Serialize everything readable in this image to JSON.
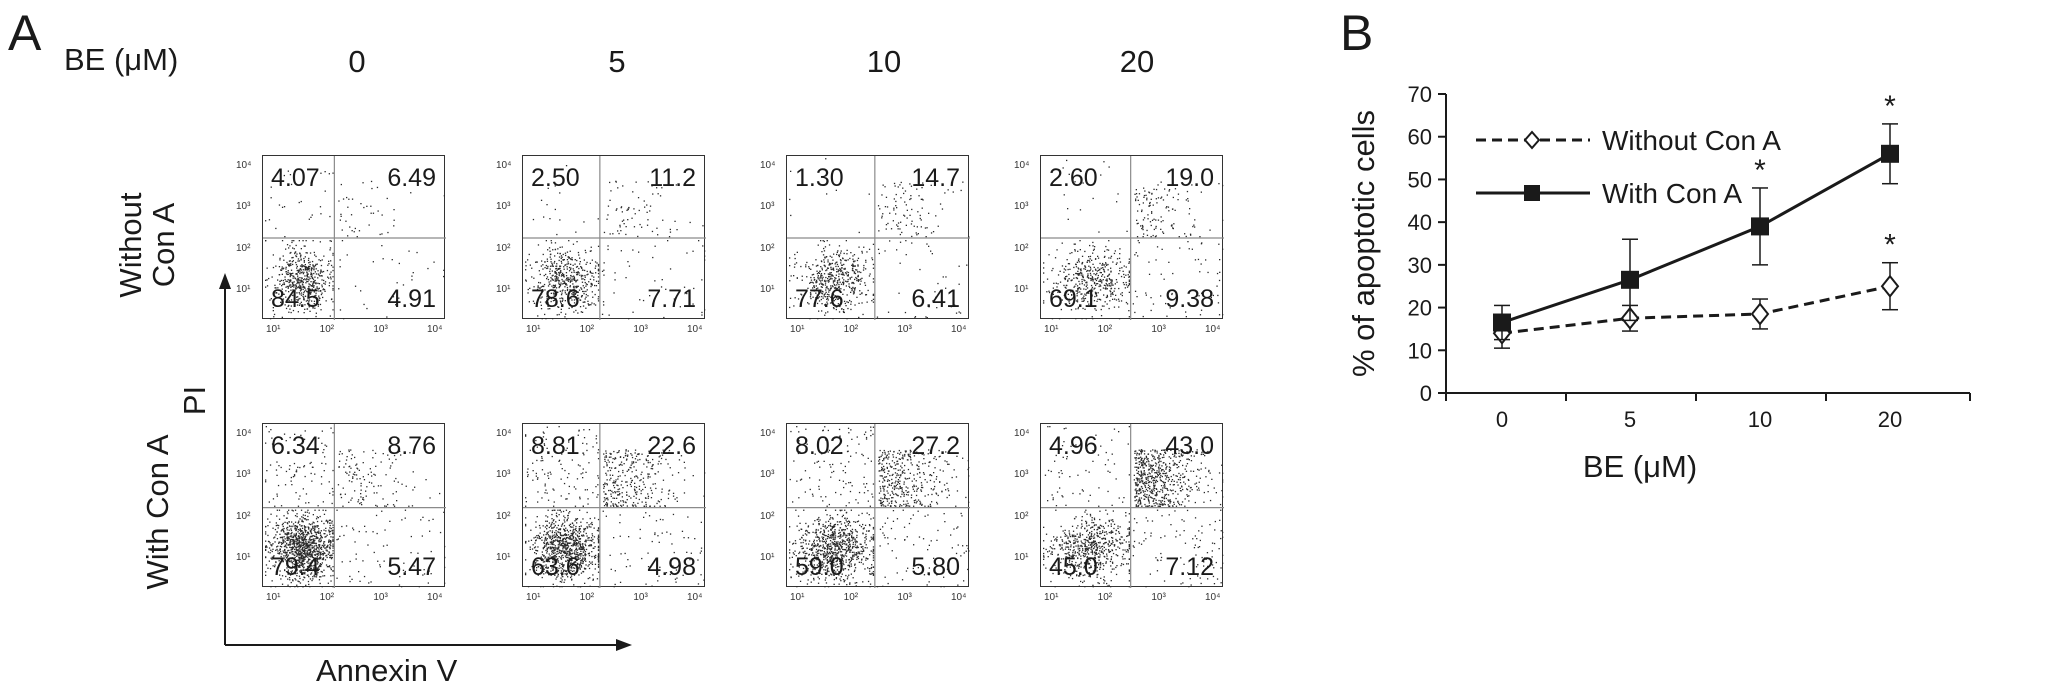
{
  "panel_a": {
    "label": "A",
    "header_label": "BE (μM)",
    "columns": [
      "0",
      "5",
      "10",
      "20"
    ],
    "rows": [
      {
        "label": "Without\nCon A"
      },
      {
        "label": "With Con A"
      }
    ],
    "y_axis_label": "PI",
    "x_axis_label": "Annexin V",
    "axis_ticks": [
      "10¹",
      "10²",
      "10³",
      "10⁴"
    ],
    "quadrants": [
      [
        {
          "ul": "4.07",
          "ur": "6.49",
          "ll": "84.5",
          "lr": "4.91"
        },
        {
          "ul": "2.50",
          "ur": "11.2",
          "ll": "78.6",
          "lr": "7.71"
        },
        {
          "ul": "1.30",
          "ur": "14.7",
          "ll": "77.6",
          "lr": "6.41"
        },
        {
          "ul": "2.60",
          "ur": "19.0",
          "ll": "69.1",
          "lr": "9.38"
        }
      ],
      [
        {
          "ul": "6.34",
          "ur": "8.76",
          "ll": "79.4",
          "lr": "5.47"
        },
        {
          "ul": "8.81",
          "ur": "22.6",
          "ll": "63.6",
          "lr": "4.98"
        },
        {
          "ul": "8.02",
          "ur": "27.2",
          "ll": "59.0",
          "lr": "5.80"
        },
        {
          "ul": "4.96",
          "ur": "43.0",
          "ll": "45.0",
          "lr": "7.12"
        }
      ]
    ]
  },
  "panel_b": {
    "label": "B"
  },
  "chart_data": {
    "type": "line",
    "x": [
      "0",
      "5",
      "10",
      "20"
    ],
    "xlabel": "BE (μM)",
    "ylabel": "% of apoptotic cells",
    "ylim": [
      0,
      70
    ],
    "yticks": [
      "0",
      "10",
      "20",
      "30",
      "40",
      "50",
      "60",
      "70"
    ],
    "grid": false,
    "legend": "top-left",
    "series": [
      {
        "name": "Without Con A",
        "values": [
          14,
          17.5,
          18.5,
          25
        ],
        "error": [
          3.5,
          3,
          3.5,
          5.5
        ],
        "marker": "open-diamond",
        "line": "dashed",
        "significant": [
          false,
          false,
          false,
          true
        ]
      },
      {
        "name": "With Con A",
        "values": [
          16.5,
          26.5,
          39,
          56
        ],
        "error": [
          4,
          9.5,
          9,
          7
        ],
        "marker": "filled-square",
        "line": "solid",
        "significant": [
          false,
          false,
          true,
          true
        ]
      }
    ],
    "annotation_symbol": "*"
  },
  "colors": {
    "ink": "#1a1a1a",
    "dot": "#2a2a2a",
    "gate": "#8a8a8a"
  }
}
